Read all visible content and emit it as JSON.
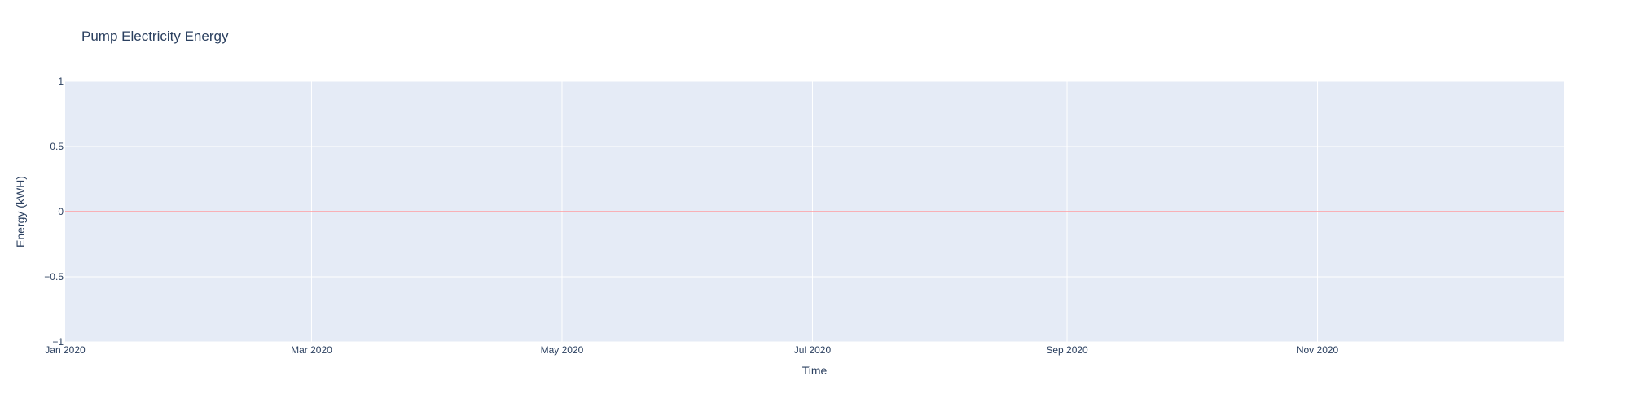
{
  "chart_data": {
    "type": "line",
    "title": "Pump Electricity Energy",
    "xlabel": "Time",
    "ylabel": "Energy (kWH)",
    "x_range": [
      "2020-01-01",
      "2020-12-31"
    ],
    "ylim": [
      -1,
      1
    ],
    "x_ticks": [
      {
        "date": "2020-01-01",
        "label": "Jan 2020"
      },
      {
        "date": "2020-03-01",
        "label": "Mar 2020"
      },
      {
        "date": "2020-05-01",
        "label": "May 2020"
      },
      {
        "date": "2020-07-01",
        "label": "Jul 2020"
      },
      {
        "date": "2020-09-01",
        "label": "Sep 2020"
      },
      {
        "date": "2020-11-01",
        "label": "Nov 2020"
      }
    ],
    "y_ticks": [
      {
        "value": 1,
        "label": "1"
      },
      {
        "value": 0.5,
        "label": "0.5"
      },
      {
        "value": 0,
        "label": "0"
      },
      {
        "value": -0.5,
        "label": "−0.5"
      },
      {
        "value": -1,
        "label": "−1"
      }
    ],
    "series": [
      {
        "color": "#ff9da0",
        "x": [
          "2020-01-01",
          "2020-12-31"
        ],
        "y": [
          0,
          0
        ]
      }
    ],
    "grid": true,
    "legend": false,
    "colors": {
      "plot_background": "#e5ebf6",
      "grid": "#ffffff",
      "text": "#2a3f5f"
    }
  }
}
